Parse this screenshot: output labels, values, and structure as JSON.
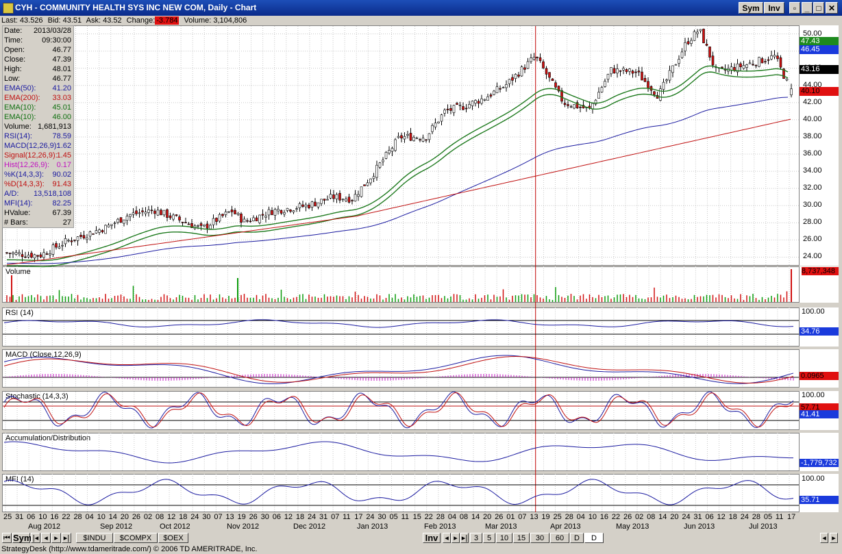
{
  "window": {
    "title": "CYH - COMMUNITY HEALTH SYS INC NEW COM, Daily - Chart",
    "sym_button": "Sym",
    "inv_button": "Inv"
  },
  "quote": {
    "last": "Last: 43.526",
    "bid": "Bid: 43.51",
    "ask": "Ask: 43.52",
    "change_label": "Change:",
    "change": "-3.784",
    "volume": "Volume: 3,104,806"
  },
  "data_window": [
    {
      "label": "Date:",
      "value": "2013/03/28",
      "color": "#000000"
    },
    {
      "label": "Time:",
      "value": "09:30:00",
      "color": "#000000"
    },
    {
      "label": "Open:",
      "value": "46.77",
      "color": "#000000"
    },
    {
      "label": "Close:",
      "value": "47.39",
      "color": "#000000"
    },
    {
      "label": "High:",
      "value": "48.01",
      "color": "#000000"
    },
    {
      "label": "Low:",
      "value": "46.77",
      "color": "#000000"
    },
    {
      "label": "EMA(50):",
      "value": "41.20",
      "color": "#1a1aa0"
    },
    {
      "label": "EMA(200):",
      "value": "33.03",
      "color": "#c01010"
    },
    {
      "label": "EMA(10):",
      "value": "45.01",
      "color": "#107010"
    },
    {
      "label": "EMA(10):",
      "value": "46.00",
      "color": "#107010"
    },
    {
      "label": "Volume:",
      "value": "1,681,913",
      "color": "#000000"
    },
    {
      "label": "RSI(14):",
      "value": "78.59",
      "color": "#1a1aa0"
    },
    {
      "label": "MACD(12,26,9):",
      "value": "1.62",
      "color": "#1a1aa0"
    },
    {
      "label": "Signal(12,26,9):",
      "value": "1.45",
      "color": "#c01010"
    },
    {
      "label": "Hist(12,26,9):",
      "value": "0.17",
      "color": "#c010c0"
    },
    {
      "label": "%K(14,3,3):",
      "value": "90.02",
      "color": "#1a1aa0"
    },
    {
      "label": "%D(14,3,3):",
      "value": "91.43",
      "color": "#c01010"
    },
    {
      "label": "A/D:",
      "value": "13,518,108",
      "color": "#1a1aa0"
    },
    {
      "label": "MFI(14):",
      "value": "82.25",
      "color": "#1a1aa0"
    },
    {
      "label": "HValue:",
      "value": "67.39",
      "color": "#000000"
    },
    {
      "label": "# Bars:",
      "value": "27",
      "color": "#000000"
    }
  ],
  "price_ticks": [
    "50.00",
    "48.00",
    "46.00",
    "44.00",
    "42.00",
    "40.00",
    "38.00",
    "36.00",
    "34.00",
    "32.00",
    "30.00",
    "28.00",
    "26.00",
    "24.00"
  ],
  "price_flags": [
    {
      "text": "47.43",
      "bg": "#1e8a1e",
      "fg": "#ffffff"
    },
    {
      "text": "46.45",
      "bg": "#1a3adc",
      "fg": "#ffffff"
    },
    {
      "text": "43.16",
      "bg": "#000000",
      "fg": "#ffffff"
    },
    {
      "text": "40.10",
      "bg": "#e01010",
      "fg": "#000000"
    }
  ],
  "panels": {
    "volume": {
      "label": "Volume",
      "flag": "8,737,348"
    },
    "rsi": {
      "label": "RSI (14)",
      "top": "100.00",
      "flag": "34.76"
    },
    "macd": {
      "label": "MACD (Close,12,26,9)",
      "flag": "0.0965"
    },
    "stoch": {
      "label": "Stochastic (14,3,3)",
      "top": "100.00",
      "flag_red": "57.71",
      "flag_blue": "41.41"
    },
    "ad": {
      "label": "Accumulation/Distribution",
      "flag": "-1,779,732"
    },
    "mfi": {
      "label": "MFI (14)",
      "top": "100.00",
      "flag": "35.71"
    }
  },
  "x_days": [
    "25",
    "31",
    "06",
    "10",
    "16",
    "22",
    "28",
    "04",
    "10",
    "14",
    "20",
    "26",
    "02",
    "08",
    "12",
    "18",
    "24",
    "30",
    "07",
    "13",
    "19",
    "26",
    "30",
    "06",
    "12",
    "18",
    "24",
    "31",
    "07",
    "11",
    "17",
    "24",
    "30",
    "05",
    "11",
    "15",
    "22",
    "28",
    "04",
    "08",
    "14",
    "20",
    "26",
    "01",
    "07",
    "13",
    "19",
    "25",
    "28",
    "04",
    "10",
    "16",
    "22",
    "26",
    "02",
    "08",
    "14",
    "20",
    "24",
    "31",
    "06",
    "12",
    "18",
    "24",
    "28",
    "05",
    "11",
    "17"
  ],
  "x_months": [
    "Aug 2012",
    "Sep 2012",
    "Oct 2012",
    "Nov 2012",
    "Dec 2012",
    "Jan 2013",
    "Feb 2013",
    "Mar 2013",
    "Apr 2013",
    "May 2013",
    "Jun 2013",
    "Jul 2013"
  ],
  "tabs": {
    "sym": "Sym",
    "inv": "Inv",
    "indices": [
      "$INDU",
      "$COMPX",
      "$OEX"
    ],
    "periods": [
      "3",
      "5",
      "10",
      "15",
      "30",
      "60",
      "D",
      "D"
    ]
  },
  "status": "StrategyDesk (http://www.tdameritrade.com/) © 2006 TD AMERITRADE, Inc.",
  "chart_data": {
    "type": "candlestick",
    "title": "CYH - COMMUNITY HEALTH SYS INC NEW COM, Daily - Chart",
    "ylim": [
      23,
      51
    ],
    "close_points": [
      {
        "x": "2012-07-25",
        "y": 24.5
      },
      {
        "x": "2012-08-10",
        "y": 24.2
      },
      {
        "x": "2012-08-22",
        "y": 25.8
      },
      {
        "x": "2012-09-10",
        "y": 27.5
      },
      {
        "x": "2012-09-20",
        "y": 28.9
      },
      {
        "x": "2012-10-02",
        "y": 29.5
      },
      {
        "x": "2012-10-12",
        "y": 28.5
      },
      {
        "x": "2012-10-24",
        "y": 27.3
      },
      {
        "x": "2012-11-07",
        "y": 29.4
      },
      {
        "x": "2012-11-13",
        "y": 28.1
      },
      {
        "x": "2012-11-26",
        "y": 29.4
      },
      {
        "x": "2012-12-12",
        "y": 30.0
      },
      {
        "x": "2012-12-24",
        "y": 31.0
      },
      {
        "x": "2013-01-02",
        "y": 30.8
      },
      {
        "x": "2013-01-11",
        "y": 33.5
      },
      {
        "x": "2013-01-24",
        "y": 38.0
      },
      {
        "x": "2013-02-05",
        "y": 38.0
      },
      {
        "x": "2013-02-14",
        "y": 41.0
      },
      {
        "x": "2013-02-22",
        "y": 41.5
      },
      {
        "x": "2013-03-04",
        "y": 42.5
      },
      {
        "x": "2013-03-14",
        "y": 44.0
      },
      {
        "x": "2013-03-28",
        "y": 47.4
      },
      {
        "x": "2013-04-10",
        "y": 42.0
      },
      {
        "x": "2013-04-22",
        "y": 41.2
      },
      {
        "x": "2013-05-02",
        "y": 45.8
      },
      {
        "x": "2013-05-14",
        "y": 45.5
      },
      {
        "x": "2013-05-24",
        "y": 42.8
      },
      {
        "x": "2013-06-06",
        "y": 49.0
      },
      {
        "x": "2013-06-12",
        "y": 50.5
      },
      {
        "x": "2013-06-20",
        "y": 45.5
      },
      {
        "x": "2013-07-05",
        "y": 46.5
      },
      {
        "x": "2013-07-17",
        "y": 47.4
      },
      {
        "x": "2013-07-25",
        "y": 43.16
      }
    ],
    "ema50": {
      "start": 24.8,
      "end": 46.45
    },
    "ema200": {
      "start": 23.1,
      "end": 40.1
    },
    "volume_max": 8737348
  }
}
